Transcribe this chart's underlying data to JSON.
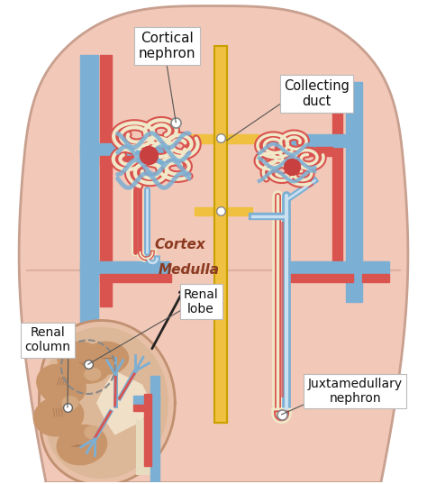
{
  "bg_color": "#f2c8b8",
  "red_color": "#d9534f",
  "blue_color": "#7bafd4",
  "yellow_color": "#f0c040",
  "cream_color": "#f0e8c8",
  "dark_red": "#c0392b",
  "dark_blue": "#5a8ab8",
  "white": "#ffffff",
  "black": "#111111",
  "labels": {
    "cortical_nephron": "Cortical\nnephron",
    "collecting_duct": "Collecting\nduct",
    "cortex": "Cortex",
    "medulla": "Medulla",
    "renal_lobe": "Renal\nlobe",
    "renal_column": "Renal\ncolumn",
    "juxtamedullary": "Juxtamedullary\nnephron"
  },
  "figsize": [
    4.74,
    5.37
  ],
  "dpi": 100
}
